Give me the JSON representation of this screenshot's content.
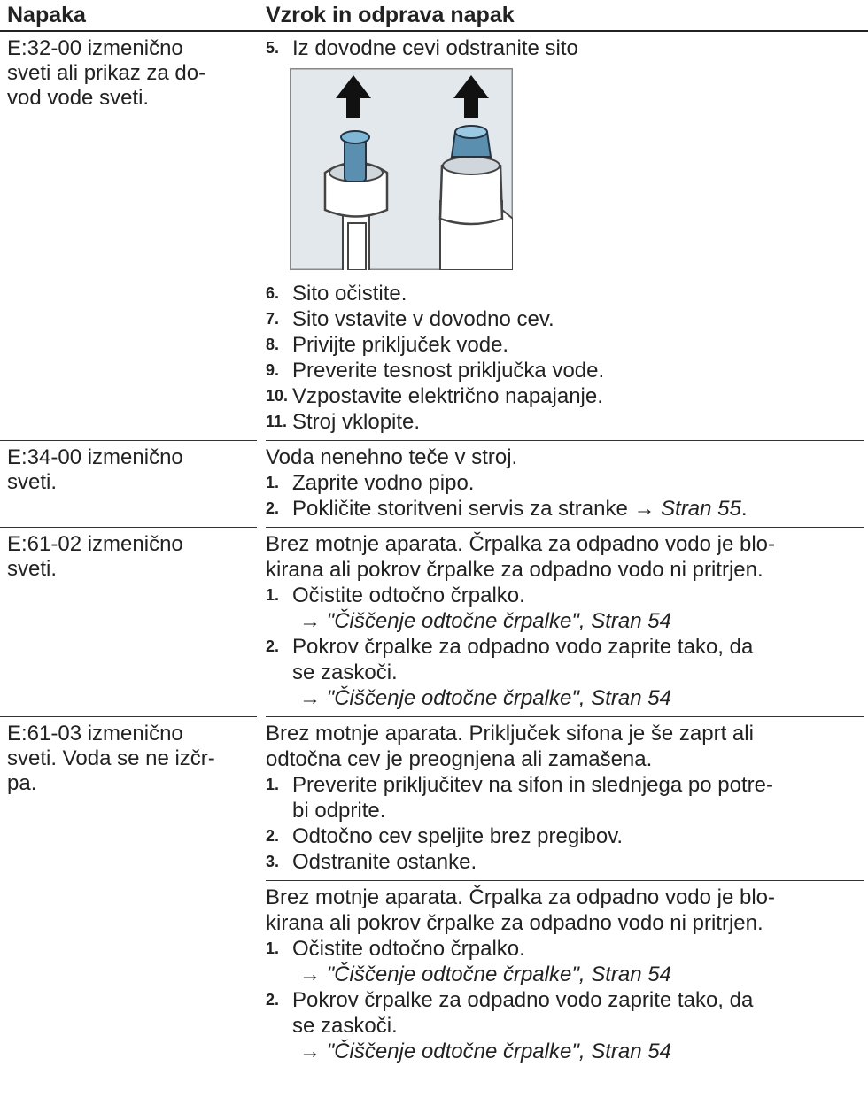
{
  "header": [
    "Napaka",
    "Vzrok in odprava napak"
  ],
  "rows": [
    {
      "fault": [
        "E:32-00 izmenično",
        "sveti ali prikaz za do-",
        "vod vode sveti."
      ],
      "steps": [
        {
          "num": "5.",
          "lines": [
            "Iz dovodne cevi odstranite sito"
          ]
        }
      ],
      "steps_continued": [
        {
          "num": "6.",
          "lines": [
            "Sito očistite."
          ]
        },
        {
          "num": "7.",
          "lines": [
            "Sito vstavite v dovodno cev."
          ]
        },
        {
          "num": "8.",
          "lines": [
            "Privijte priključek vode."
          ]
        },
        {
          "num": "9.",
          "lines": [
            "Preverite tesnost priključka vode."
          ]
        },
        {
          "num": "10.",
          "lines": [
            "Vzpostavite električno napajanje."
          ]
        },
        {
          "num": "11.",
          "lines": [
            "Stroj vklopite."
          ]
        }
      ]
    },
    {
      "fault": [
        "E:34-00 izmenično",
        "sveti."
      ],
      "intro": [
        "Voda nenehno teče v stroj."
      ],
      "steps": [
        {
          "num": "1.",
          "lines": [
            "Zaprite vodno pipo."
          ]
        },
        {
          "num": "2.",
          "lines": [
            "Pokličite storitveni servis za stranke →"
          ],
          "ref_inline": "Stran 55",
          "end": "."
        }
      ]
    },
    {
      "fault": [
        "E:61-02 izmenično",
        "sveti."
      ],
      "intro": [
        "Brez motnje aparata. Črpalka za odpadno vodo je blo-",
        "kirana ali pokrov črpalke za odpadno vodo ni pritrjen."
      ],
      "steps": [
        {
          "num": "1.",
          "lines": [
            "Očistite odtočno črpalko."
          ],
          "ref": "→ \"Čiščenje odtočne črpalke\", Stran 54"
        },
        {
          "num": "2.",
          "lines": [
            "Pokrov črpalke za odpadno vodo zaprite tako, da",
            "se zaskoči."
          ],
          "ref": "→ \"Čiščenje odtočne črpalke\", Stran 54"
        }
      ]
    },
    {
      "fault": [
        "E:61-03 izmenično",
        "sveti. Voda se ne izčr-",
        "pa."
      ],
      "intro": [
        "Brez motnje aparata. Priključek sifona je še zaprt ali",
        "odtočna cev je preognjena ali zamašena."
      ],
      "steps": [
        {
          "num": "1.",
          "lines": [
            "Preverite priključitev na sifon in slednjega po potre-",
            "bi odprite."
          ]
        },
        {
          "num": "2.",
          "lines": [
            "Odtočno cev speljite brez pregibov."
          ]
        },
        {
          "num": "3.",
          "lines": [
            "Odstranite ostanke."
          ]
        }
      ]
    },
    {
      "intro": [
        "Brez motnje aparata. Črpalka za odpadno vodo je blo-",
        "kirana ali pokrov črpalke za odpadno vodo ni pritrjen."
      ],
      "steps": [
        {
          "num": "1.",
          "lines": [
            "Očistite odtočno črpalko."
          ],
          "ref": "→ \"Čiščenje odtočne črpalke\", Stran 54"
        },
        {
          "num": "2.",
          "lines": [
            "Pokrov črpalke za odpadno vodo zaprite tako, da",
            "se zaskoči."
          ],
          "ref": "→ \"Čiščenje odtočne črpalke\", Stran 54"
        }
      ]
    }
  ]
}
